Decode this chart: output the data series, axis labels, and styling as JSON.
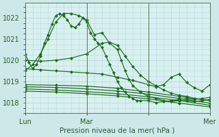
{
  "bg_color": "#cce8e8",
  "plot_bg_color": "#d8f0f0",
  "grid_color": "#b8d8d8",
  "line_color": "#1a6b1a",
  "title": "Pression niveau de la mer( hPa )",
  "ylim": [
    1017.5,
    1022.7
  ],
  "yticks": [
    1018,
    1019,
    1020,
    1021,
    1022
  ],
  "xlim": [
    0,
    48
  ],
  "xtick_positions": [
    0,
    16,
    32,
    48
  ],
  "xtick_labels": [
    "Lun",
    "Mar",
    "",
    "Mer"
  ],
  "vline_positions": [
    0,
    16,
    32,
    48
  ],
  "series": [
    {
      "x": [
        0,
        1,
        2,
        3,
        4,
        5,
        6,
        7,
        8,
        9,
        10,
        11,
        12,
        13,
        14,
        15,
        16,
        17,
        18,
        19,
        20,
        21,
        22,
        23,
        24,
        25,
        26,
        27,
        28,
        29,
        30,
        32,
        34,
        36,
        38,
        40,
        42,
        44,
        46,
        48
      ],
      "y": [
        1020.3,
        1019.9,
        1019.6,
        1019.8,
        1020.2,
        1020.8,
        1021.2,
        1021.7,
        1022.1,
        1022.2,
        1022.1,
        1021.9,
        1021.6,
        1021.55,
        1021.7,
        1022.0,
        1021.8,
        1021.3,
        1021.0,
        1020.8,
        1020.6,
        1020.2,
        1019.8,
        1019.4,
        1019.0,
        1018.7,
        1018.5,
        1018.3,
        1018.2,
        1018.1,
        1018.1,
        1018.1,
        1018.0,
        1018.05,
        1018.1,
        1018.15,
        1018.2,
        1018.15,
        1018.2,
        1018.25
      ]
    },
    {
      "x": [
        0,
        2,
        4,
        6,
        8,
        10,
        12,
        14,
        16,
        18,
        20,
        22,
        24,
        25,
        26,
        27,
        28,
        30,
        32,
        34,
        36,
        38,
        40,
        42,
        44,
        46,
        48
      ],
      "y": [
        1019.5,
        1019.8,
        1020.3,
        1021.0,
        1021.8,
        1022.2,
        1022.2,
        1022.1,
        1021.9,
        1021.2,
        1021.3,
        1020.8,
        1020.5,
        1020.0,
        1019.5,
        1019.1,
        1018.8,
        1018.5,
        1018.3,
        1018.2,
        1018.1,
        1018.05,
        1018.1,
        1018.1,
        1018.05,
        1018.1,
        1018.15
      ]
    },
    {
      "x": [
        0,
        4,
        8,
        12,
        16,
        20,
        22,
        24,
        26,
        28,
        30,
        32,
        34,
        36,
        38,
        40,
        42,
        44,
        46,
        48
      ],
      "y": [
        1020.0,
        1019.95,
        1020.0,
        1020.1,
        1020.3,
        1020.8,
        1020.85,
        1020.7,
        1020.2,
        1019.7,
        1019.3,
        1019.0,
        1018.8,
        1018.6,
        1018.45,
        1018.35,
        1018.3,
        1018.2,
        1018.15,
        1018.1
      ]
    },
    {
      "x": [
        0,
        4,
        8,
        12,
        16,
        20,
        24,
        28,
        32,
        34,
        36,
        38,
        40,
        42,
        44,
        46,
        48
      ],
      "y": [
        1019.6,
        1019.55,
        1019.5,
        1019.45,
        1019.4,
        1019.35,
        1019.2,
        1019.05,
        1018.85,
        1018.75,
        1018.85,
        1019.2,
        1019.35,
        1018.95,
        1018.7,
        1018.55,
        1018.85
      ]
    },
    {
      "x": [
        0,
        8,
        16,
        24,
        32,
        40,
        48
      ],
      "y": [
        1018.85,
        1018.82,
        1018.78,
        1018.68,
        1018.5,
        1018.3,
        1018.1
      ]
    },
    {
      "x": [
        0,
        8,
        16,
        24,
        32,
        40,
        48
      ],
      "y": [
        1018.75,
        1018.72,
        1018.65,
        1018.55,
        1018.4,
        1018.2,
        1017.98
      ]
    },
    {
      "x": [
        0,
        8,
        16,
        24,
        32,
        40,
        48
      ],
      "y": [
        1018.65,
        1018.6,
        1018.52,
        1018.42,
        1018.28,
        1018.1,
        1017.88
      ]
    },
    {
      "x": [
        0,
        8,
        16,
        24,
        32,
        40,
        48
      ],
      "y": [
        1018.55,
        1018.5,
        1018.42,
        1018.32,
        1018.18,
        1017.98,
        1017.8
      ]
    }
  ]
}
